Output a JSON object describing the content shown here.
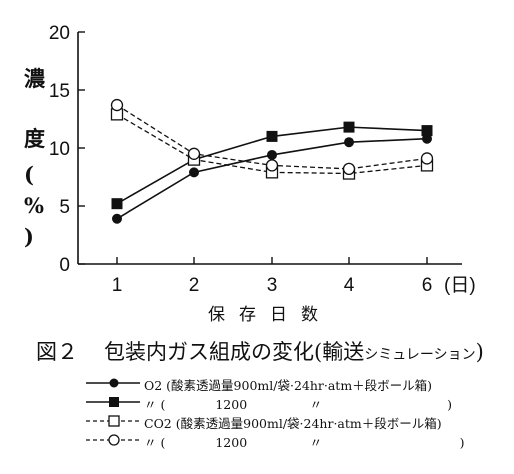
{
  "chart_data": {
    "type": "line",
    "x": [
      1,
      2,
      3,
      4,
      6
    ],
    "x_tick_labels": [
      "1",
      "2",
      "3",
      "4",
      "6"
    ],
    "x_unit": "(日)",
    "xlabel": "保存日数",
    "ylabel_chars": [
      "濃",
      "度",
      "(",
      "%",
      ")"
    ],
    "ylim": [
      0,
      20
    ],
    "y_ticks": [
      0,
      5,
      10,
      15,
      20
    ],
    "grid": false,
    "series": [
      {
        "name": "O2 (酸素透過量900ml/袋·24hr·atm+段ボール箱)",
        "gas": "O2",
        "permeability": "900",
        "marker": "filled-circle",
        "line": "solid",
        "values": [
          3.9,
          7.9,
          9.4,
          10.5,
          10.8
        ]
      },
      {
        "name": "O2 (酸素透過量1200ml/袋·24hr·atm+段ボール箱)",
        "gas": "O2",
        "permeability": "1200",
        "marker": "filled-square",
        "line": "solid",
        "values": [
          5.2,
          9.0,
          11.0,
          11.8,
          11.5
        ]
      },
      {
        "name": "CO2 (酸素透過量900ml/袋·24hr·atm+段ボール箱)",
        "gas": "CO2",
        "permeability": "900",
        "marker": "open-square",
        "line": "dashed",
        "values": [
          12.9,
          9.0,
          7.9,
          7.8,
          8.5
        ]
      },
      {
        "name": "CO2 (酸素透過量1200ml/袋·24hr·atm+段ボール箱)",
        "gas": "CO2",
        "permeability": "1200",
        "marker": "open-circle",
        "line": "dashed",
        "values": [
          13.7,
          9.5,
          8.5,
          8.2,
          9.1
        ]
      }
    ]
  },
  "caption": {
    "number": "図２",
    "title": "包装内ガス組成の変化(輸送",
    "title_small": "シミュレーション",
    "title_end": ")"
  },
  "legend": [
    {
      "text": "O2 (酸素透過量900ml/袋·24hr·atm＋段ボール箱)"
    },
    {
      "text": "〃 (　　　　1200　　　　　〃　　　　　　　　　　)"
    },
    {
      "text": "CO2 (酸素透過量900ml/袋·24hr·atm＋段ボール箱)"
    },
    {
      "text": "〃 (　　　　1200　　　　　〃　　　　　　　　　　　)"
    }
  ]
}
